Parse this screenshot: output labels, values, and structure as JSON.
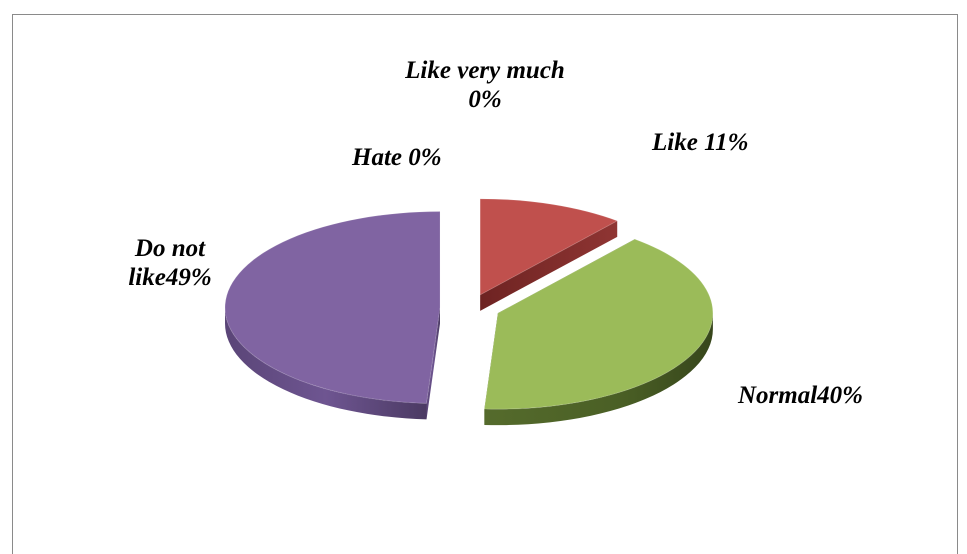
{
  "chart_data": {
    "type": "pie",
    "title": "",
    "categories": [
      "Like very much",
      "Like",
      "Normal",
      "Do not like",
      "Hate"
    ],
    "values": [
      0,
      11,
      40,
      49,
      0
    ],
    "data_labels": [
      "Like very much 0%",
      "Like 11%",
      "Normal40%",
      "Do not like49%",
      "Hate 0%"
    ],
    "colors": [
      "#4f81bd",
      "#c0504d",
      "#9bbb59",
      "#8064a2",
      "#4bacc6"
    ],
    "exploded": true,
    "three_d": true,
    "legend": "none"
  }
}
